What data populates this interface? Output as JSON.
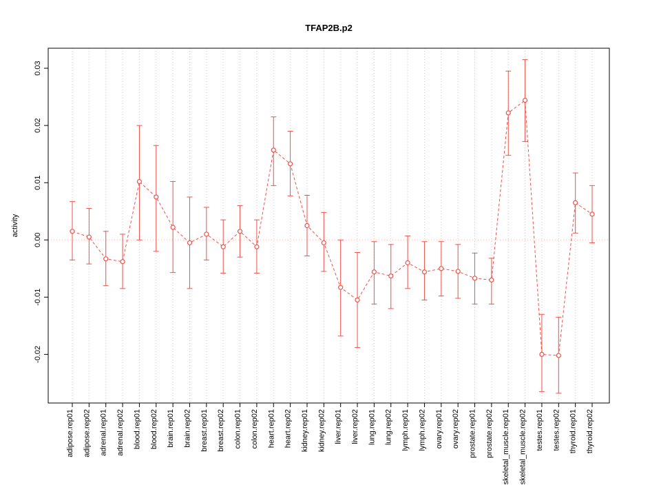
{
  "figure": {
    "title": "TFAP2B.p2",
    "ylabel": "activity"
  },
  "chart_data": {
    "type": "line",
    "title": "TFAP2B.p2",
    "xlabel": "",
    "ylabel": "activity",
    "ylim": [
      -0.0285,
      0.0335
    ],
    "yticks": [
      -0.02,
      -0.01,
      0.0,
      0.01,
      0.02,
      0.03
    ],
    "grid": true,
    "legend": false,
    "point_style": "open-circle",
    "line_style": "dashed",
    "error_bars": true,
    "colors": {
      "series": "#f05048",
      "zero_line": "#f8b8b0",
      "grid": "#c8c8c8",
      "axis": "#000000"
    },
    "categories": [
      "adipose.rep01",
      "adipose.rep02",
      "adrenal.rep01",
      "adrenal.rep02",
      "blood.rep01",
      "blood.rep02",
      "brain.rep01",
      "brain.rep02",
      "breast.rep01",
      "breast.rep02",
      "colon.rep01",
      "colon.rep02",
      "heart.rep01",
      "heart.rep02",
      "kidney.rep01",
      "kidney.rep02",
      "liver.rep01",
      "liver.rep02",
      "lung.rep01",
      "lung.rep02",
      "lymph.rep01",
      "lymph.rep02",
      "ovary.rep01",
      "ovary.rep02",
      "prostate.rep01",
      "prostate.rep02",
      "skeletal_muscle.rep01",
      "skeletal_muscle.rep02",
      "testes.rep01",
      "testes.rep02",
      "thyroid.rep01",
      "thyroid.rep02"
    ],
    "series": [
      {
        "name": "activity",
        "values": [
          0.0015,
          0.0005,
          -0.0033,
          -0.0038,
          0.0102,
          0.0075,
          0.0022,
          -0.0005,
          0.001,
          -0.0012,
          0.0015,
          -0.0012,
          0.0157,
          0.0133,
          0.0025,
          -0.0005,
          -0.0083,
          -0.0105,
          -0.0056,
          -0.0063,
          -0.004,
          -0.0056,
          -0.005,
          -0.0055,
          -0.0067,
          -0.007,
          0.0222,
          0.0244,
          -0.02,
          -0.0202,
          0.0065,
          0.0045
        ],
        "err_low": [
          -0.0035,
          -0.0042,
          -0.008,
          -0.0085,
          0.0,
          -0.002,
          -0.0057,
          -0.0085,
          -0.0035,
          -0.0058,
          -0.003,
          -0.0058,
          0.0095,
          0.0077,
          -0.0028,
          -0.0055,
          -0.0168,
          -0.0188,
          -0.0112,
          -0.012,
          -0.0085,
          -0.0105,
          -0.0098,
          -0.0102,
          -0.0112,
          -0.0112,
          0.0148,
          0.0172,
          -0.0265,
          -0.0268,
          0.0012,
          -0.0005
        ],
        "err_high": [
          0.0067,
          0.0055,
          0.0015,
          0.001,
          0.02,
          0.0165,
          0.0102,
          0.0075,
          0.0057,
          0.0035,
          0.006,
          0.0035,
          0.0215,
          0.019,
          0.0078,
          0.0048,
          0.0,
          -0.0022,
          -0.0003,
          -0.0008,
          0.0007,
          -0.0003,
          -0.0003,
          -0.0008,
          -0.0023,
          -0.0032,
          0.0295,
          0.0315,
          -0.013,
          -0.0135,
          0.0117,
          0.0095
        ]
      }
    ]
  }
}
